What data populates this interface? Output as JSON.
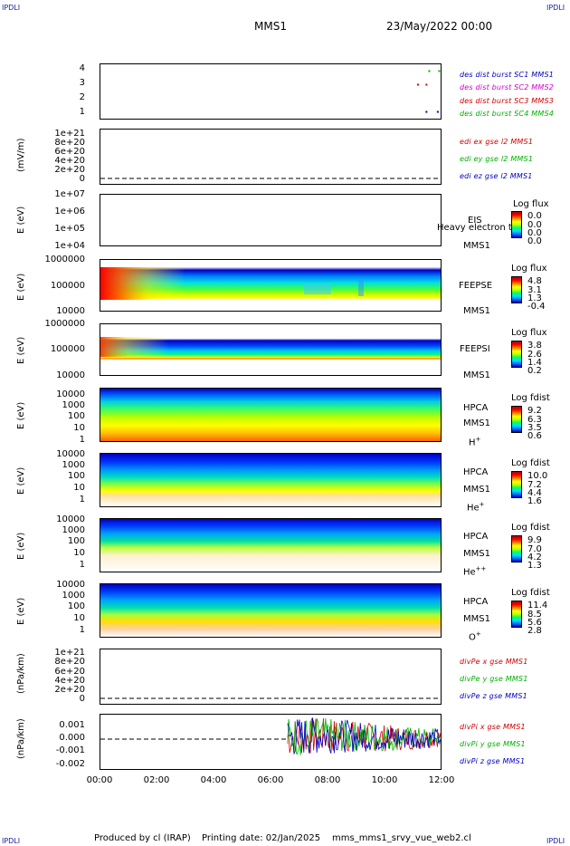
{
  "header": {
    "corner_tl": "IPDLI",
    "corner_tr": "IPDLI",
    "corner_bl": "IPDLI",
    "corner_br": "IPDLI",
    "spacecraft": "MMS1",
    "datetime": "23/May/2022 00:00"
  },
  "footer": {
    "produced_by": "Produced by cl (IRAP)",
    "printing_date": "Printing date: 02/Jan/2025",
    "filename": "mms_mms1_srvy_vue_web2.cl"
  },
  "colors": {
    "sc1": "#0000c0",
    "sc2": "#d000d0",
    "sc3": "#d00000",
    "sc4": "#00b000",
    "x": "#d00000",
    "y": "#00b000",
    "z": "#0000c0"
  },
  "chart_data": [
    {
      "type": "scatter",
      "id": "burst",
      "yticks": [
        "4",
        "3",
        "2",
        "1"
      ],
      "ylim": [
        0.5,
        4.5
      ],
      "legend": [
        "des dist burst SC1 MMS1",
        "des dist burst SC2 MMS2",
        "des dist burst SC3 MMS3",
        "des dist burst SC4 MMS4"
      ],
      "series": [
        {
          "name": "des dist burst SC1 MMS1",
          "x": [
            11.5,
            11.9
          ],
          "y": [
            1,
            1
          ]
        },
        {
          "name": "des dist burst SC2 MMS2",
          "x": [],
          "y": []
        },
        {
          "name": "des dist burst SC3 MMS3",
          "x": [
            11.2,
            11.5
          ],
          "y": [
            3,
            3
          ]
        },
        {
          "name": "des dist burst SC4 MMS4",
          "x": [
            11.6,
            11.95
          ],
          "y": [
            4,
            4
          ]
        }
      ]
    },
    {
      "type": "line",
      "id": "edi",
      "ylabel": "(mV/m)",
      "yticks": [
        "1e+21",
        "8e+20",
        "6e+20",
        "4e+20",
        "2e+20",
        "0"
      ],
      "ylim": [
        0,
        1e+21
      ],
      "legend": [
        "edi ex gse l2 MMS1",
        "edi ey gse l2 MMS1",
        "edi ez gse l2 MMS1"
      ]
    },
    {
      "type": "heatmap",
      "id": "eis",
      "ylabel": "E (eV)",
      "yticks": [
        "1e+07",
        "1e+06",
        "1e+05",
        "1e+04"
      ],
      "labels": [
        "EIS",
        "MMS1"
      ],
      "overlay": "Heavy electron to",
      "cbar_title": "Log flux",
      "cbar_values": [
        "0.0",
        "0.0",
        "0.0",
        "0.0"
      ]
    },
    {
      "type": "heatmap",
      "id": "feepse",
      "ylabel": "E (eV)",
      "yticks": [
        "1000000",
        "100000",
        "10000"
      ],
      "labels": [
        "FEEPSE",
        "MMS1"
      ],
      "cbar_title": "Log flux",
      "cbar_values": [
        "4.8",
        "3.1",
        "1.3",
        "-0.4"
      ]
    },
    {
      "type": "heatmap",
      "id": "feepsi",
      "ylabel": "E (eV)",
      "yticks": [
        "1000000",
        "100000",
        "10000"
      ],
      "labels": [
        "FEEPSI",
        "MMS1"
      ],
      "cbar_title": "Log flux",
      "cbar_values": [
        "3.8",
        "2.6",
        "1.4",
        "0.2"
      ]
    },
    {
      "type": "heatmap",
      "id": "hpca_h",
      "ylabel": "E (eV)",
      "yticks": [
        "10000",
        "1000",
        "100",
        "10",
        "1"
      ],
      "labels": [
        "HPCA",
        "MMS1"
      ],
      "species": "H",
      "species_sup": "+",
      "cbar_title": "Log fdist",
      "cbar_values": [
        "9.2",
        "6.3",
        "3.5",
        "0.6"
      ]
    },
    {
      "type": "heatmap",
      "id": "hpca_he",
      "ylabel": "E (eV)",
      "yticks": [
        "10000",
        "1000",
        "100",
        "10",
        "1"
      ],
      "labels": [
        "HPCA",
        "MMS1"
      ],
      "species": "He",
      "species_sup": "+",
      "cbar_title": "Log fdist",
      "cbar_values": [
        "10.0",
        "7.2",
        "4.4",
        "1.6"
      ]
    },
    {
      "type": "heatmap",
      "id": "hpca_hepp",
      "ylabel": "E (eV)",
      "yticks": [
        "10000",
        "1000",
        "100",
        "10",
        "1"
      ],
      "labels": [
        "HPCA",
        "MMS1"
      ],
      "species": "He",
      "species_sup": "++",
      "cbar_title": "Log fdist",
      "cbar_values": [
        "9.9",
        "7.0",
        "4.2",
        "1.3"
      ]
    },
    {
      "type": "heatmap",
      "id": "hpca_o",
      "ylabel": "E (eV)",
      "yticks": [
        "10000",
        "1000",
        "100",
        "10",
        "1"
      ],
      "labels": [
        "HPCA",
        "MMS1"
      ],
      "species": "O",
      "species_sup": "+",
      "cbar_title": "Log fdist",
      "cbar_values": [
        "11.4",
        "8.5",
        "5.6",
        "2.8"
      ]
    },
    {
      "type": "line",
      "id": "divpe",
      "ylabel": "(nPa/km)",
      "yticks": [
        "1e+21",
        "8e+20",
        "6e+20",
        "4e+20",
        "2e+20",
        "0"
      ],
      "ylim": [
        0,
        1e+21
      ],
      "legend": [
        "divPe x gse MMS1",
        "divPe y gse MMS1",
        "divPe z gse MMS1"
      ]
    },
    {
      "type": "line",
      "id": "divpi",
      "ylabel": "(nPa/km)",
      "yticks": [
        "0.001",
        "0.000",
        "-0.001",
        "-0.002"
      ],
      "ylim": [
        -0.0022,
        0.0012
      ],
      "legend": [
        "divPi x gse MMS1",
        "divPi y gse MMS1",
        "divPi z gse MMS1"
      ],
      "data_start_hour": 6.6
    }
  ],
  "xaxis": {
    "ticks": [
      "00:00",
      "02:00",
      "04:00",
      "06:00",
      "08:00",
      "10:00",
      "12:00"
    ],
    "xlim": [
      0,
      12
    ]
  }
}
